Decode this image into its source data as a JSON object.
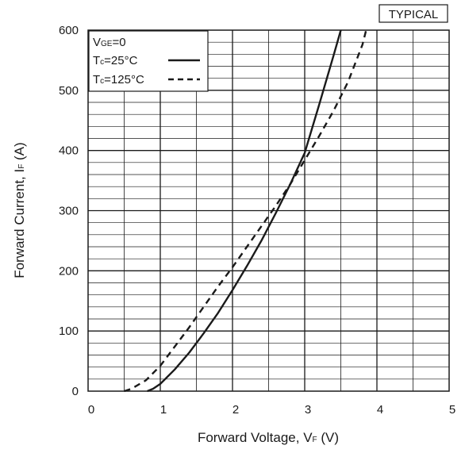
{
  "badge": "TYPICAL",
  "chart_data": {
    "type": "line",
    "title": "",
    "xlabel": {
      "main": "Forward Voltage, V",
      "sub": "F",
      "unit": " (V)"
    },
    "ylabel": {
      "main": "Forward Current, I",
      "sub": "F",
      "unit": " (A)"
    },
    "xlim": [
      0,
      5
    ],
    "ylim": [
      0,
      600
    ],
    "x_ticks": [
      0,
      1,
      2,
      3,
      4,
      5
    ],
    "y_ticks": [
      0,
      100,
      200,
      300,
      400,
      500,
      600
    ],
    "grid": true,
    "legend_position": "top-left",
    "legend_condition": {
      "main": "V",
      "sub": "GE",
      "rest": "=0"
    },
    "series": [
      {
        "name": {
          "main": "T",
          "sub": "c",
          "rest": "=25°C"
        },
        "style": "solid",
        "x": [
          0.82,
          0.9,
          1.0,
          1.2,
          1.4,
          1.6,
          1.8,
          2.0,
          2.2,
          2.4,
          2.6,
          2.8,
          3.0,
          3.2,
          3.4,
          3.5
        ],
        "y": [
          0,
          4,
          12,
          36,
          64,
          96,
          130,
          168,
          208,
          250,
          296,
          344,
          396,
          476,
          558,
          600
        ]
      },
      {
        "name": {
          "main": "T",
          "sub": "c",
          "rest": "=125°C"
        },
        "style": "dashed",
        "x": [
          0.5,
          0.6,
          0.8,
          1.0,
          1.2,
          1.4,
          1.6,
          1.8,
          2.0,
          2.2,
          2.4,
          2.6,
          2.8,
          3.0,
          3.2,
          3.4,
          3.6,
          3.8,
          3.85
        ],
        "y": [
          0,
          4,
          18,
          42,
          74,
          106,
          140,
          174,
          206,
          240,
          274,
          308,
          344,
          384,
          424,
          466,
          514,
          576,
          600
        ]
      }
    ]
  }
}
